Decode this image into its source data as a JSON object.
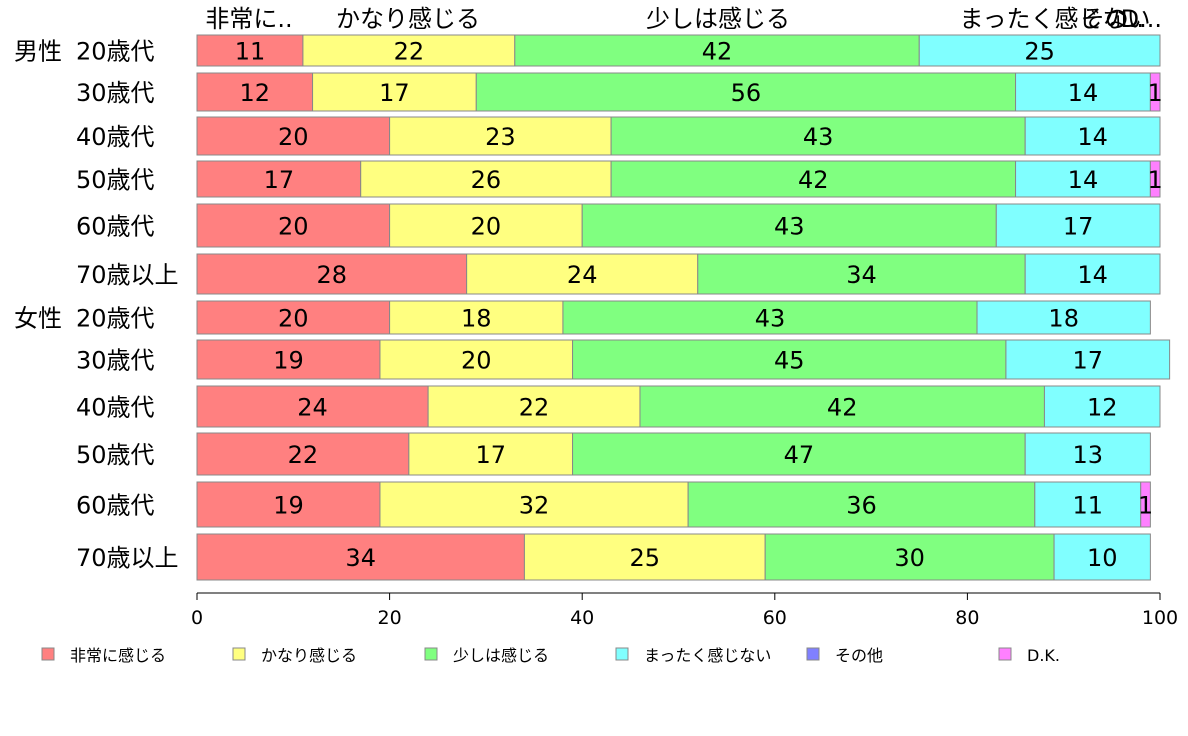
{
  "chart_data": {
    "type": "bar",
    "orientation": "horizontal",
    "stacked": true,
    "xlim": [
      0,
      100
    ],
    "x_ticks": [
      0,
      20,
      40,
      60,
      80,
      100
    ],
    "header_labels": [
      "非常に..",
      "かなり感じる",
      "少しは感じる",
      "まったく感じない",
      "その..",
      "D..."
    ],
    "groups": [
      {
        "label": "男性",
        "start": 0
      },
      {
        "label": "女性",
        "start": 6
      }
    ],
    "categories": [
      "20歳代",
      "30歳代",
      "40歳代",
      "50歳代",
      "60歳代",
      "70歳以上",
      "20歳代",
      "30歳代",
      "40歳代",
      "50歳代",
      "60歳代",
      "70歳以上"
    ],
    "series": [
      {
        "name": "非常に感じる",
        "color": "#ff8080",
        "values": [
          11,
          12,
          20,
          17,
          20,
          28,
          20,
          19,
          24,
          22,
          19,
          34
        ]
      },
      {
        "name": "かなり感じる",
        "color": "#ffff80",
        "values": [
          22,
          17,
          23,
          26,
          20,
          24,
          18,
          20,
          22,
          17,
          32,
          25
        ]
      },
      {
        "name": "少しは感じる",
        "color": "#80ff80",
        "values": [
          42,
          56,
          43,
          42,
          43,
          34,
          43,
          45,
          42,
          47,
          36,
          30
        ]
      },
      {
        "name": "まったく感じない",
        "color": "#80ffff",
        "values": [
          25,
          14,
          14,
          14,
          17,
          14,
          18,
          17,
          12,
          13,
          11,
          10
        ]
      },
      {
        "name": "その他",
        "color": "#8080ff",
        "values": [
          0,
          0,
          0,
          0,
          0,
          0,
          0,
          0,
          0,
          0,
          0,
          0
        ]
      },
      {
        "name": "D.K.",
        "color": "#ff80ff",
        "values": [
          0,
          1,
          0,
          1,
          0,
          0,
          0,
          0,
          0,
          0,
          1,
          0
        ]
      }
    ],
    "legend_position": "bottom",
    "grid": false
  }
}
